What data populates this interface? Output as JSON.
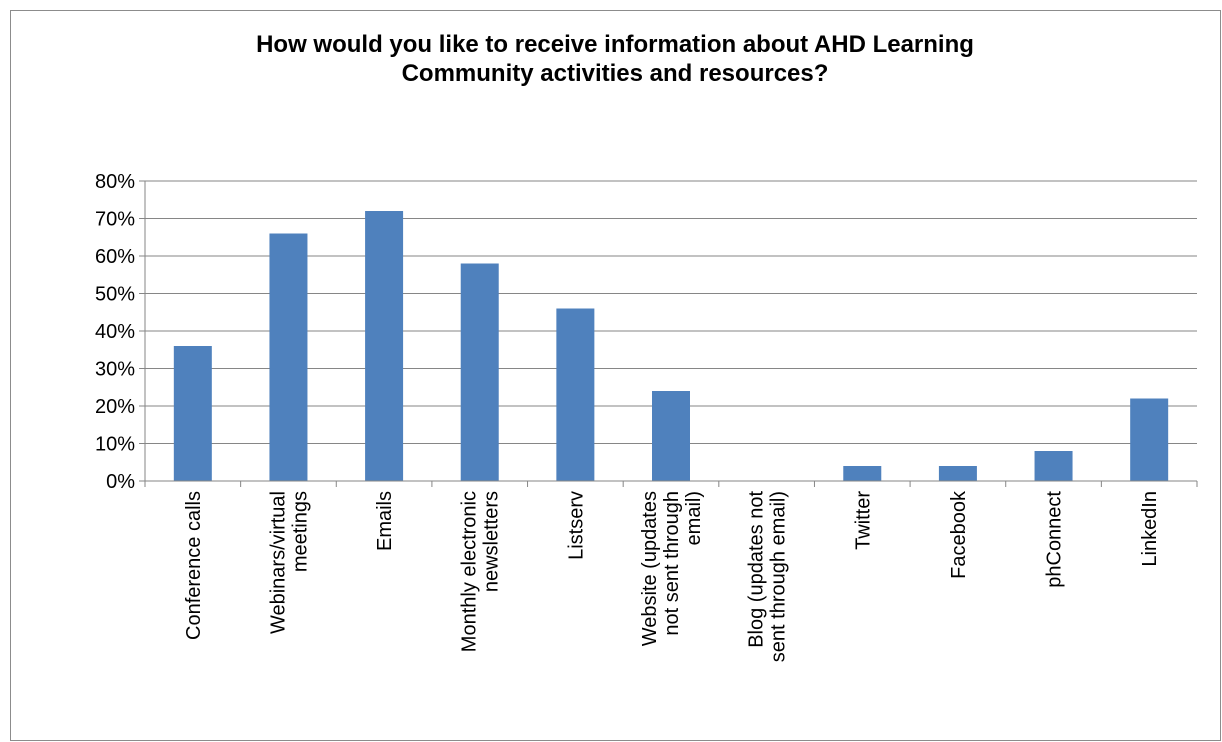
{
  "chart_data": {
    "type": "bar",
    "title_lines": [
      "How would you like to receive information about AHD Learning",
      "Community activities and resources?"
    ],
    "categories": [
      [
        "Conference calls"
      ],
      [
        "Webinars/virtual",
        "meetings"
      ],
      [
        "Emails"
      ],
      [
        "Monthly electronic",
        "newsletters"
      ],
      [
        "Listserv"
      ],
      [
        "Website (updates",
        "not sent through",
        "email)"
      ],
      [
        "Blog (updates not",
        "sent through email)"
      ],
      [
        "Twitter"
      ],
      [
        "Facebook"
      ],
      [
        "phConnect"
      ],
      [
        "LinkedIn"
      ]
    ],
    "values": [
      36,
      66,
      72,
      58,
      46,
      24,
      0,
      4,
      4,
      8,
      22
    ],
    "value_format": "percent",
    "ylim": [
      0,
      80
    ],
    "yticks": [
      "0%",
      "10%",
      "20%",
      "30%",
      "40%",
      "50%",
      "60%",
      "70%",
      "80%"
    ],
    "grid": true,
    "bar_color": "#4f81bd",
    "grid_color": "#868686"
  }
}
